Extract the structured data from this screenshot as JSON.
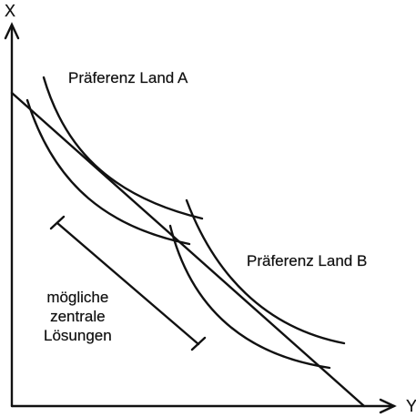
{
  "axes": {
    "x_label": "X",
    "y_label": "Y"
  },
  "labels": {
    "preference_a": "Präferenz Land A",
    "preference_b": "Präferenz Land B",
    "solutions_line1": "mögliche",
    "solutions_line2": "zentrale",
    "solutions_line3": "Lösungen"
  },
  "colors": {
    "ink": "#111111",
    "background": "#ffffff"
  }
}
